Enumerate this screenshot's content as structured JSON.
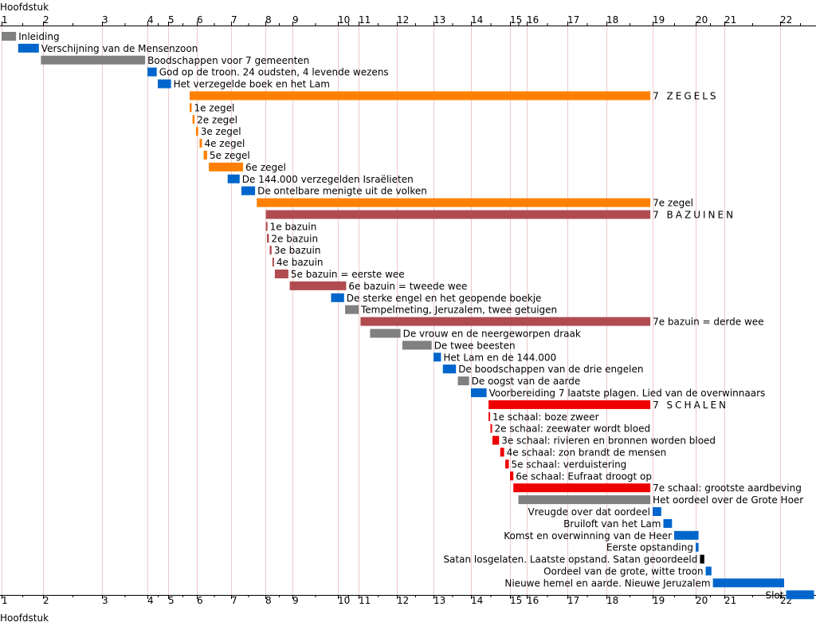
{
  "axis": {
    "title_top": "Hoofdstuk",
    "title_bottom": "Hoofdstuk"
  },
  "colors": {
    "gray": "#808080",
    "blue": "#0066cc",
    "orange": "#ff8000",
    "brown": "#b04c50",
    "red": "#ee0000",
    "black": "#000000",
    "grid": "#f0c8c8"
  },
  "chart_data": {
    "type": "bar",
    "orientation": "horizontal-timeline",
    "xlabel": "Hoofdstuk",
    "xlim": [
      1,
      23
    ],
    "ticks": [
      1,
      2,
      3,
      4,
      5,
      6,
      7,
      8,
      9,
      10,
      11,
      12,
      13,
      14,
      15,
      16,
      17,
      18,
      19,
      20,
      21,
      22
    ],
    "grid": true,
    "bars": [
      {
        "label": "Inleiding",
        "start": 1.0,
        "end": 1.35,
        "color": "gray",
        "label_side": "right"
      },
      {
        "label": "Verschijning van de Mensenzoon",
        "start": 1.4,
        "end": 1.9,
        "color": "blue",
        "label_side": "right"
      },
      {
        "label": "Boodschappen voor 7 gemeenten",
        "start": 1.95,
        "end": 3.95,
        "color": "gray",
        "label_side": "right"
      },
      {
        "label": "God op de troon. 24 oudsten, 4 levende wezens",
        "start": 4.0,
        "end": 4.45,
        "color": "blue",
        "label_side": "right"
      },
      {
        "label": "Het verzegelde boek en het Lam",
        "start": 4.5,
        "end": 5.1,
        "color": "blue",
        "label_side": "right"
      },
      {
        "label": "7 ZEGELS",
        "start": 5.75,
        "end": 18.95,
        "color": "orange",
        "label_side": "right",
        "section": true
      },
      {
        "label": "1e zegel",
        "start": 5.75,
        "end": 5.82,
        "color": "orange",
        "label_side": "right"
      },
      {
        "label": "2e zegel",
        "start": 5.85,
        "end": 5.92,
        "color": "orange",
        "label_side": "right"
      },
      {
        "label": "3e zegel",
        "start": 5.97,
        "end": 6.04,
        "color": "orange",
        "label_side": "right"
      },
      {
        "label": "4e zegel",
        "start": 6.08,
        "end": 6.15,
        "color": "orange",
        "label_side": "right"
      },
      {
        "label": "5e zegel",
        "start": 6.2,
        "end": 6.3,
        "color": "orange",
        "label_side": "right"
      },
      {
        "label": "6e zegel",
        "start": 6.35,
        "end": 7.35,
        "color": "orange",
        "label_side": "right"
      },
      {
        "label": "De 144.000 verzegelden Israëlieten",
        "start": 6.9,
        "end": 7.25,
        "color": "blue",
        "label_side": "right"
      },
      {
        "label": "De ontelbare menigte uit de volken",
        "start": 7.3,
        "end": 7.7,
        "color": "blue",
        "label_side": "right"
      },
      {
        "label": "7e zegel",
        "start": 7.75,
        "end": 18.95,
        "color": "orange",
        "label_side": "right"
      },
      {
        "label": "7 BAZUINEN",
        "start": 8.02,
        "end": 18.95,
        "color": "brown",
        "label_side": "right",
        "section": true
      },
      {
        "label": "1e bazuin",
        "start": 8.02,
        "end": 8.05,
        "color": "brown",
        "label_side": "right"
      },
      {
        "label": "2e bazuin",
        "start": 8.06,
        "end": 8.13,
        "color": "brown",
        "label_side": "right"
      },
      {
        "label": "3e bazuin",
        "start": 8.16,
        "end": 8.23,
        "color": "brown",
        "label_side": "right"
      },
      {
        "label": "4e bazuin",
        "start": 8.26,
        "end": 8.32,
        "color": "brown",
        "label_side": "right"
      },
      {
        "label": "5e bazuin = eerste wee",
        "start": 8.35,
        "end": 8.85,
        "color": "brown",
        "label_side": "right"
      },
      {
        "label": "6e bazuin = tweede wee",
        "start": 8.9,
        "end": 10.4,
        "color": "brown",
        "label_side": "right"
      },
      {
        "label": "De sterke engel en het geopende boekje",
        "start": 9.85,
        "end": 10.3,
        "color": "blue",
        "label_side": "right"
      },
      {
        "label": "Tempelmeting, Jeruzalem, twee getuigen",
        "start": 10.35,
        "end": 11.0,
        "color": "gray",
        "label_side": "right"
      },
      {
        "label": "7e bazuin = derde wee",
        "start": 11.05,
        "end": 18.95,
        "color": "brown",
        "label_side": "right"
      },
      {
        "label": "De vrouw en de neergeworpen draak",
        "start": 11.3,
        "end": 12.1,
        "color": "gray",
        "label_side": "right"
      },
      {
        "label": "De twee beesten",
        "start": 12.15,
        "end": 12.95,
        "color": "gray",
        "label_side": "right"
      },
      {
        "label": "Het Lam en de 144.000",
        "start": 13.0,
        "end": 13.2,
        "color": "blue",
        "label_side": "right"
      },
      {
        "label": "De boodschappen van de drie engelen",
        "start": 13.25,
        "end": 13.6,
        "color": "blue",
        "label_side": "right"
      },
      {
        "label": "De oogst van de aarde",
        "start": 13.65,
        "end": 13.95,
        "color": "gray",
        "label_side": "right"
      },
      {
        "label": "Voorbereiding 7 laatste plagen. Lied van de overwinnaars",
        "start": 14.0,
        "end": 14.4,
        "color": "blue",
        "label_side": "right"
      },
      {
        "label": "7 SCHALEN",
        "start": 14.45,
        "end": 18.95,
        "color": "red",
        "label_side": "right",
        "section": true
      },
      {
        "label": "1e schaal: boze zweer",
        "start": 14.45,
        "end": 14.48,
        "color": "red",
        "label_side": "right"
      },
      {
        "label": "2e schaal: zeewater wordt bloed",
        "start": 14.5,
        "end": 14.53,
        "color": "red",
        "label_side": "right"
      },
      {
        "label": "3e schaal: rivieren en bronnen worden bloed",
        "start": 14.55,
        "end": 14.72,
        "color": "red",
        "label_side": "right"
      },
      {
        "label": "4e schaal: zon brandt de mensen",
        "start": 14.75,
        "end": 14.85,
        "color": "red",
        "label_side": "right"
      },
      {
        "label": "5e schaal: verduistering",
        "start": 14.88,
        "end": 14.97,
        "color": "red",
        "label_side": "right"
      },
      {
        "label": "6e schaal: Eufraat droogt op",
        "start": 15.0,
        "end": 15.2,
        "color": "red",
        "label_side": "right"
      },
      {
        "label": "7e schaal: grootste aardbeving",
        "start": 15.2,
        "end": 18.95,
        "color": "red",
        "label_side": "right"
      },
      {
        "label": "Het oordeel over de Grote Hoer",
        "start": 15.5,
        "end": 18.95,
        "color": "gray",
        "label_side": "right"
      },
      {
        "label": "Vreugde over dat oordeel",
        "start": 19.0,
        "end": 19.2,
        "color": "blue",
        "label_side": "left"
      },
      {
        "label": "Bruiloft van het Lam",
        "start": 19.25,
        "end": 19.45,
        "color": "blue",
        "label_side": "left"
      },
      {
        "label": "Komst en overwinning van de Heer",
        "start": 19.5,
        "end": 20.1,
        "color": "blue",
        "label_side": "left"
      },
      {
        "label": "Eerste opstanding",
        "start": 20.0,
        "end": 20.1,
        "color": "blue",
        "label_side": "left"
      },
      {
        "label": "Satan losgelaten. Laatste opstand. Satan geoordeeld",
        "start": 20.15,
        "end": 20.3,
        "color": "black",
        "label_side": "left"
      },
      {
        "label": "Oordeel van de grote, witte troon",
        "start": 20.35,
        "end": 20.55,
        "color": "blue",
        "label_side": "left"
      },
      {
        "label": "Nieuwe hemel en aarde. Nieuwe Jeruzalem",
        "start": 20.6,
        "end": 22.1,
        "color": "blue",
        "label_side": "left"
      },
      {
        "label": "Slot",
        "start": 22.15,
        "end": 22.85,
        "color": "blue",
        "label_side": "left"
      }
    ]
  }
}
